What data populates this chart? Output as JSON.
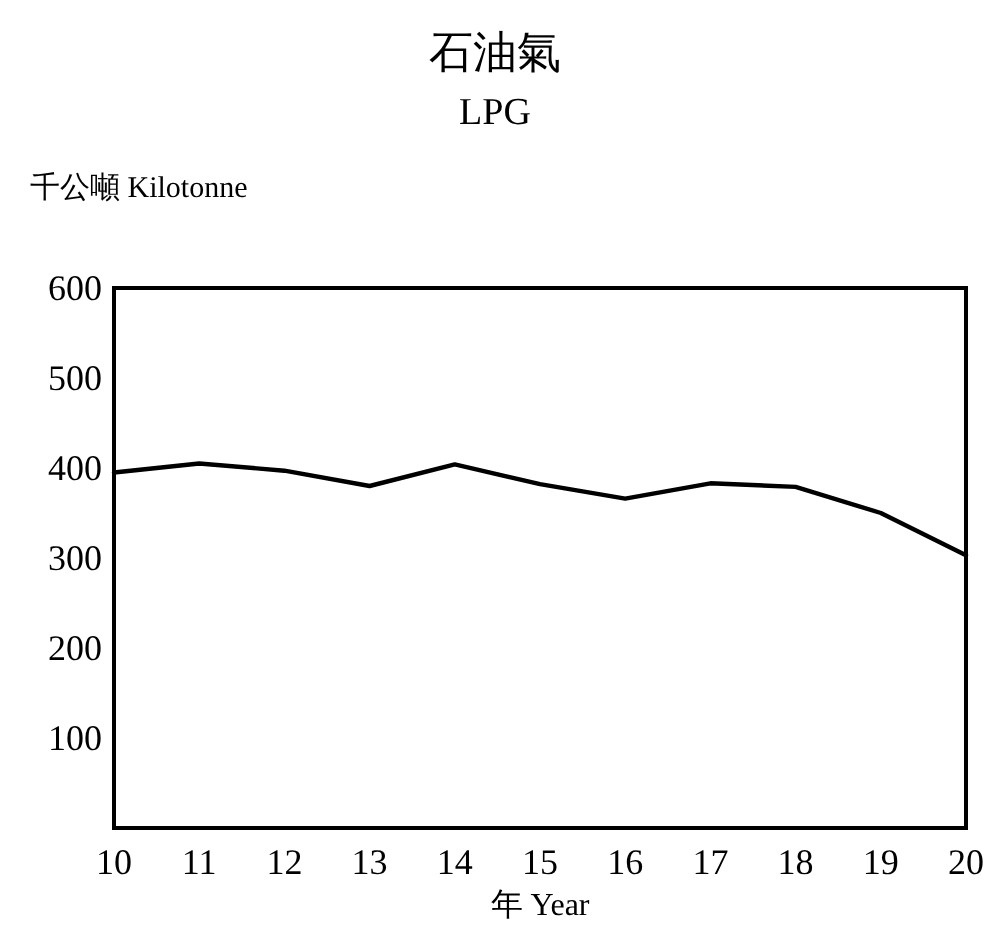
{
  "chart_data": {
    "type": "line",
    "title": "石油氣",
    "subtitle": "LPG",
    "ylabel": "千公噸 Kilotonne",
    "xlabel": "年 Year",
    "x": [
      10,
      11,
      12,
      13,
      14,
      15,
      16,
      17,
      18,
      19,
      20
    ],
    "series": [
      {
        "color": "#000000",
        "values": [
          395,
          405,
          397,
          380,
          404,
          382,
          366,
          383,
          379,
          350,
          303
        ]
      }
    ],
    "xlim": [
      10,
      20
    ],
    "xticks": [
      10,
      11,
      12,
      13,
      14,
      15,
      16,
      17,
      18,
      19,
      20
    ],
    "ylim": [
      0,
      600
    ],
    "yticks": [
      100,
      200,
      300,
      400,
      500,
      600
    ],
    "grid": false,
    "marker": "none",
    "line_style": "solid"
  }
}
